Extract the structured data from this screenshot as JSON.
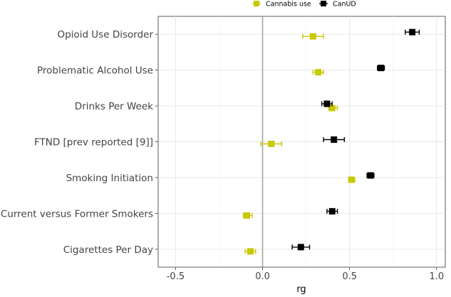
{
  "chart_data": {
    "type": "scatter",
    "subtype": "forest-plot-with-error-bars",
    "xlabel": "rg",
    "ylabel": "",
    "xlim": [
      -0.6,
      1.05
    ],
    "xticks": [
      -0.5,
      0.0,
      0.5,
      1.0
    ],
    "xtick_labels": [
      "-0.5",
      "0.0",
      "0.5",
      "1.0"
    ],
    "reference_line_x": 0.0,
    "grid": true,
    "legend_position": "top-right",
    "categories": [
      "Opioid Use Disorder",
      "Problematic Alcohol Use",
      "Drinks Per Week",
      "FTND [prev reported [9]]",
      "Smoking Initiation",
      "Current versus Former Smokers",
      "Cigarettes Per Day"
    ],
    "series": [
      {
        "name": "Cannabis use",
        "color": "#c8c800",
        "values": [
          0.29,
          0.32,
          0.4,
          0.05,
          0.51,
          -0.09,
          -0.07
        ],
        "lower": [
          0.23,
          0.29,
          0.38,
          -0.01,
          0.5,
          -0.11,
          -0.1
        ],
        "upper": [
          0.35,
          0.35,
          0.43,
          0.11,
          0.53,
          -0.06,
          -0.04
        ]
      },
      {
        "name": "CanUD",
        "color": "#000000",
        "values": [
          0.86,
          0.68,
          0.37,
          0.41,
          0.62,
          0.4,
          0.22
        ],
        "lower": [
          0.82,
          0.66,
          0.34,
          0.35,
          0.6,
          0.37,
          0.17
        ],
        "upper": [
          0.9,
          0.7,
          0.4,
          0.47,
          0.64,
          0.43,
          0.27
        ]
      }
    ]
  }
}
